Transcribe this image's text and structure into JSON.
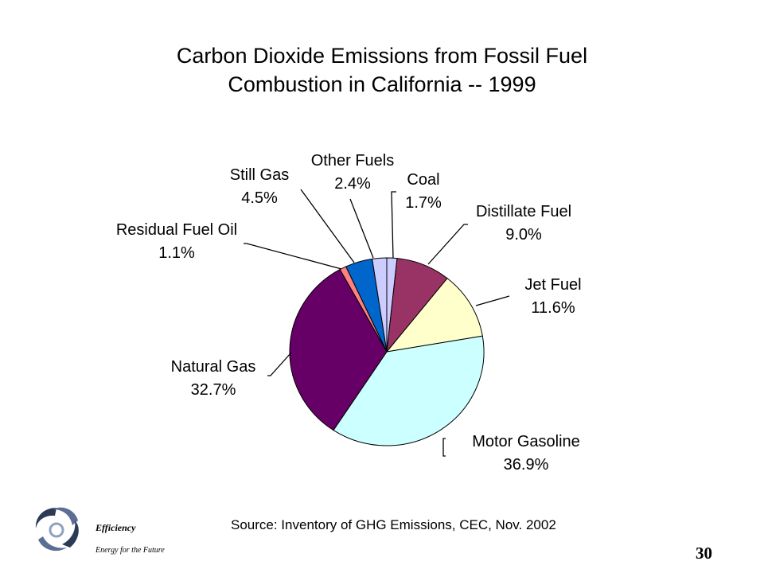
{
  "chart_data": {
    "type": "pie",
    "title_lines": [
      "Carbon Dioxide Emissions from Fossil Fuel",
      "Combustion in California -- 1999"
    ],
    "slices": [
      {
        "name": "Coal",
        "value": 1.7,
        "label": "1.7%",
        "color": "#ccccff"
      },
      {
        "name": "Distillate Fuel",
        "value": 9.0,
        "label": "9.0%",
        "color": "#993366"
      },
      {
        "name": "Jet Fuel",
        "value": 11.6,
        "label": "11.6%",
        "color": "#ffffcc"
      },
      {
        "name": "Motor Gasoline",
        "value": 36.9,
        "label": "36.9%",
        "color": "#ccffff"
      },
      {
        "name": "Natural Gas",
        "value": 32.7,
        "label": "32.7%",
        "color": "#660066"
      },
      {
        "name": "Residual Fuel Oil",
        "value": 1.1,
        "label": "1.1%",
        "color": "#ff8080"
      },
      {
        "name": "Still Gas",
        "value": 4.5,
        "label": "4.5%",
        "color": "#0066cc"
      },
      {
        "name": "Other Fuels",
        "value": 2.4,
        "label": "2.4%",
        "color": "#ccccff"
      }
    ]
  },
  "footer": {
    "source": "Source: Inventory of GHG Emissions, CEC, Nov. 2002",
    "page_number": "30",
    "brand_name": "Efficiency",
    "brand_tagline": "Energy for the Future"
  }
}
